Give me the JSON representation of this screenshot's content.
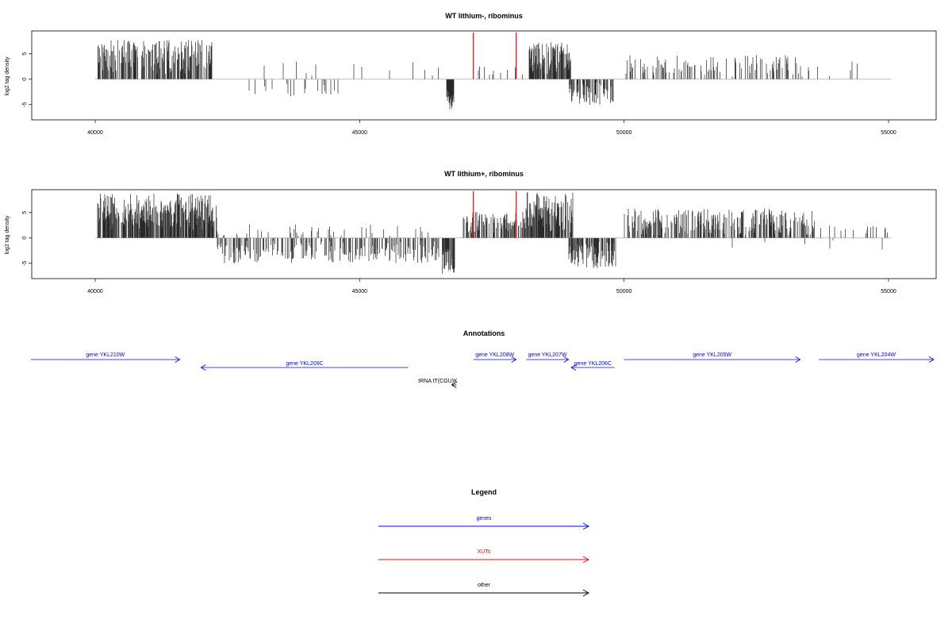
{
  "chart_data": [
    {
      "type": "bar",
      "title": "WT lithium-, ribominus",
      "ylabel": "log2 tag density",
      "xlim": [
        38800,
        55900
      ],
      "ylim": [
        -8,
        9.5
      ],
      "xticks": [
        "40000",
        "45000",
        "50000",
        "55000"
      ],
      "yticks": [
        "-5",
        "0",
        "5"
      ],
      "segments": [
        {
          "strand": "plus",
          "from": 40050,
          "to": 42200,
          "min": 1,
          "max": 7.8,
          "density": 0.55
        },
        {
          "strand": "minus",
          "from": 42600,
          "to": 44800,
          "min": 0.5,
          "max": 3.8,
          "density": 0.06
        },
        {
          "strand": "plus",
          "from": 42600,
          "to": 46600,
          "min": 0.5,
          "max": 3.5,
          "density": 0.02
        },
        {
          "strand": "minus",
          "from": 46650,
          "to": 46780,
          "min": 2,
          "max": 6,
          "density": 1
        },
        {
          "strand": "plus",
          "from": 47150,
          "to": 48180,
          "min": 0.5,
          "max": 2.5,
          "density": 0.1
        },
        {
          "strand": "plus",
          "from": 48200,
          "to": 49000,
          "min": 1,
          "max": 7.4,
          "density": 0.7
        },
        {
          "strand": "minus",
          "from": 48950,
          "to": 49800,
          "min": 0.5,
          "max": 5.2,
          "density": 0.5
        },
        {
          "strand": "plus",
          "from": 50000,
          "to": 53500,
          "min": 0.5,
          "max": 4.8,
          "density": 0.22
        },
        {
          "strand": "plus",
          "from": 53500,
          "to": 54500,
          "min": 0.5,
          "max": 3.5,
          "density": 0.03
        }
      ],
      "highlights": [
        {
          "x": 47150,
          "y": 9.2
        },
        {
          "x": 47960,
          "y": 9.2
        }
      ],
      "highlight_color": "#ff0000"
    },
    {
      "type": "bar",
      "title": "WT lithium+, ribominus",
      "ylabel": "log2 tag density",
      "xlim": [
        38800,
        55900
      ],
      "ylim": [
        -8,
        9.5
      ],
      "xticks": [
        "40000",
        "45000",
        "50000",
        "55000"
      ],
      "yticks": [
        "-5",
        "0",
        "5"
      ],
      "segments": [
        {
          "strand": "plus",
          "from": 40050,
          "to": 42300,
          "min": 1.5,
          "max": 8.8,
          "density": 0.7
        },
        {
          "strand": "minus",
          "from": 42300,
          "to": 46500,
          "min": 0.5,
          "max": 5,
          "density": 0.35
        },
        {
          "strand": "plus",
          "from": 42300,
          "to": 46300,
          "min": 0.3,
          "max": 2.8,
          "density": 0.06
        },
        {
          "strand": "minus",
          "from": 46550,
          "to": 46800,
          "min": 2,
          "max": 7,
          "density": 0.9
        },
        {
          "strand": "plus",
          "from": 46900,
          "to": 48150,
          "min": 1,
          "max": 5.2,
          "density": 0.45
        },
        {
          "strand": "plus",
          "from": 48150,
          "to": 49050,
          "min": 1,
          "max": 9,
          "density": 0.8
        },
        {
          "strand": "minus",
          "from": 48950,
          "to": 49850,
          "min": 0.5,
          "max": 6,
          "density": 0.7
        },
        {
          "strand": "plus",
          "from": 50000,
          "to": 53600,
          "min": 0.5,
          "max": 5.8,
          "density": 0.45
        },
        {
          "strand": "plus",
          "from": 53600,
          "to": 55100,
          "min": 0.3,
          "max": 2.5,
          "density": 0.06
        },
        {
          "strand": "minus",
          "from": 52000,
          "to": 55000,
          "min": 0.3,
          "max": 2.5,
          "density": 0.02
        }
      ],
      "highlights": [
        {
          "x": 47150,
          "y": 9.2
        },
        {
          "x": 47960,
          "y": 9.2
        }
      ],
      "highlight_color": "#ff0000"
    }
  ],
  "annotations": {
    "title": "Annotations",
    "gene_color": "#0000ff",
    "other_color": "#000000",
    "features": [
      {
        "label": "gene YKL210W",
        "kind": "gene",
        "from": 38800,
        "to": 41600,
        "dir": "right",
        "row": 0
      },
      {
        "label": "gene YKL209C",
        "kind": "gene",
        "from": 42000,
        "to": 45920,
        "dir": "left",
        "row": 1
      },
      {
        "label": "gene YKL208W",
        "kind": "gene",
        "from": 47150,
        "to": 47960,
        "dir": "right",
        "row": 0
      },
      {
        "label": "gene YKL207W",
        "kind": "gene",
        "from": 48150,
        "to": 48950,
        "dir": "right",
        "row": 0
      },
      {
        "label": "gene YKL206C",
        "kind": "gene",
        "from": 49000,
        "to": 49820,
        "dir": "left",
        "row": 1
      },
      {
        "label": "gene YKL205W",
        "kind": "gene",
        "from": 50000,
        "to": 53330,
        "dir": "right",
        "row": 0
      },
      {
        "label": "gene YKL204W",
        "kind": "gene",
        "from": 53680,
        "to": 55600,
        "dir": "right",
        "row": 0
      },
      {
        "label": "tRNA tT(CGU)K",
        "kind": "other",
        "from": 46740,
        "to": 46830,
        "dir": "left",
        "row": 2
      }
    ]
  },
  "legend": {
    "title": "Legend",
    "items": [
      {
        "label": "genes",
        "color": "#0000ff"
      },
      {
        "label": "XUTs",
        "color": "#ff0000"
      },
      {
        "label": "other",
        "color": "#000000"
      }
    ]
  }
}
